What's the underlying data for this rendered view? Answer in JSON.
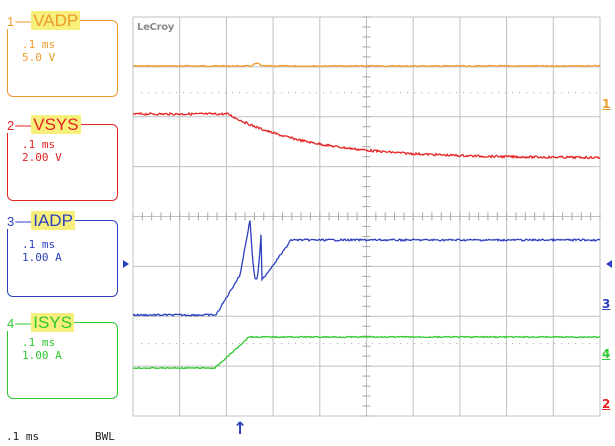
{
  "scope": {
    "brand": "LeCroy",
    "timebase": ".1 ms",
    "bandwidth_limit": "BWL"
  },
  "channels": [
    {
      "id": "1",
      "name": "VADP",
      "timebase": ".1 ms",
      "scale": "5.0 V",
      "color": "#ee9a2a"
    },
    {
      "id": "2",
      "name": "VSYS",
      "timebase": ".1 ms",
      "scale": "2.00 V",
      "color": "#e52222"
    },
    {
      "id": "3",
      "name": "IADP",
      "timebase": ".1 ms",
      "scale": "1.00 A",
      "color": "#2d3fbf"
    },
    {
      "id": "4",
      "name": "ISYS",
      "timebase": ".1 ms",
      "scale": "1.00 A",
      "color": "#2fc82f"
    }
  ],
  "markers": {
    "ch1_label": "1",
    "ch3_label": "3",
    "ch4_label": "4",
    "ch2_label": "2",
    "trigger_arrow": "↑"
  }
}
